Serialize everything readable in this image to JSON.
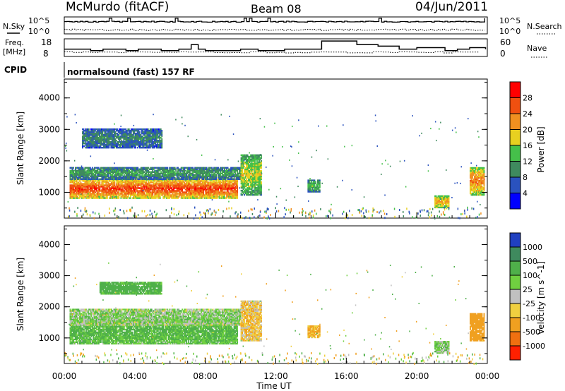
{
  "header": {
    "station": "McMurdo (fitACF)",
    "beam": "Beam 08",
    "date": "04/Jun/2011"
  },
  "strip_labels": {
    "nsky": "N.Sky",
    "nsearch": "N.Search",
    "freq_line1": "Freq.",
    "freq_line2": "[MHz]",
    "nave": "Nave",
    "cpid": "CPID",
    "cpid_value": "normalsound (fast) 157 RF"
  },
  "strip_ticks": {
    "noise_left_top": "10^5",
    "noise_left_bottom": "10^0",
    "noise_right_top": "10^5",
    "noise_right_bottom": "10^0",
    "freq_top": "18",
    "freq_bottom": "8",
    "nave_top": "60",
    "nave_bottom": "0"
  },
  "x_axis": {
    "label": "Time UT",
    "ticks": [
      "00:00",
      "04:00",
      "08:00",
      "12:00",
      "16:00",
      "20:00",
      "00:00"
    ]
  },
  "power_panel": {
    "ylabel": "Slant Range [km]",
    "yticks": [
      "1000",
      "2000",
      "3000",
      "4000"
    ],
    "colorbar_label": "Power [dB]",
    "colorbar_ticks": [
      "4",
      "8",
      "12",
      "16",
      "20",
      "24",
      "28"
    ],
    "colors": [
      "#0000ff",
      "#2a52be",
      "#3f8a5e",
      "#45c04a",
      "#e8d020",
      "#f09020",
      "#f05010",
      "#ff0000"
    ]
  },
  "velocity_panel": {
    "ylabel": "Slant Range [km]",
    "yticks": [
      "1000",
      "2000",
      "3000",
      "4000"
    ],
    "colorbar_label": "Velocity [m s^-1]",
    "colorbar_ticks": [
      "1000",
      "500",
      "100",
      "25",
      "-25",
      "-100",
      "-500",
      "-1000"
    ],
    "colors": [
      "#2040c0",
      "#3f8a5e",
      "#4fb04a",
      "#70d040",
      "#c0c0c0",
      "#f0d040",
      "#f0a020",
      "#f07010",
      "#ff2000"
    ]
  },
  "chart_data": [
    {
      "type": "heatmap",
      "title": "McMurdo (fitACF) Beam 08 04/Jun/2011",
      "xlabel": "Time UT",
      "ylabel": "Slant Range [km]",
      "colorbar": "Power [dB]",
      "xlim": [
        "00:00",
        "24:00"
      ],
      "ylim": [
        180,
        4600
      ],
      "clim": [
        0,
        32
      ],
      "series": [
        {
          "t0": 0.3,
          "t1": 9.8,
          "r0": 800,
          "r1": 1400,
          "value": 28
        },
        {
          "t0": 0.3,
          "t1": 10.0,
          "r0": 1400,
          "r1": 1800,
          "value": 12
        },
        {
          "t0": 1.0,
          "t1": 5.5,
          "r0": 2400,
          "r1": 3000,
          "value": 10
        },
        {
          "t0": 10.0,
          "t1": 11.2,
          "r0": 900,
          "r1": 2200,
          "value": 18
        },
        {
          "t0": 13.8,
          "t1": 14.5,
          "r0": 1000,
          "r1": 1400,
          "value": 14
        },
        {
          "t0": 21.0,
          "t1": 21.8,
          "r0": 500,
          "r1": 900,
          "value": 22
        },
        {
          "t0": 23.0,
          "t1": 23.8,
          "r0": 900,
          "r1": 1800,
          "value": 24
        }
      ]
    },
    {
      "type": "heatmap",
      "title": "McMurdo (fitACF) Beam 08 04/Jun/2011",
      "xlabel": "Time UT",
      "ylabel": "Slant Range [km]",
      "colorbar": "Velocity [m s^-1]",
      "xlim": [
        "00:00",
        "24:00"
      ],
      "ylim": [
        180,
        4600
      ],
      "clim": [
        -1000,
        1000
      ],
      "series": [
        {
          "t0": 0.3,
          "t1": 9.8,
          "r0": 800,
          "r1": 1600,
          "value": 150
        },
        {
          "t0": 0.3,
          "t1": 10.0,
          "r0": 1400,
          "r1": 1900,
          "value": 60
        },
        {
          "t0": 2.0,
          "t1": 5.5,
          "r0": 2400,
          "r1": 2800,
          "value": 200
        },
        {
          "t0": 10.0,
          "t1": 11.2,
          "r0": 900,
          "r1": 2200,
          "value": -80
        },
        {
          "t0": 13.8,
          "t1": 14.5,
          "r0": 1000,
          "r1": 1400,
          "value": -150
        },
        {
          "t0": 21.0,
          "t1": 21.8,
          "r0": 500,
          "r1": 900,
          "value": 80
        },
        {
          "t0": 23.0,
          "t1": 23.8,
          "r0": 900,
          "r1": 1800,
          "value": -300
        }
      ]
    }
  ]
}
